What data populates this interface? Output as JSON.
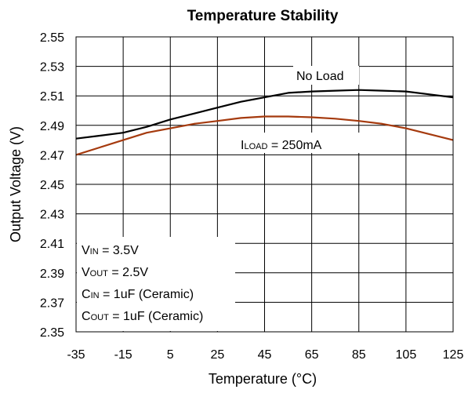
{
  "chart_data": {
    "type": "line",
    "title": "Temperature  Stability",
    "xlabel": "Temperature (°C)",
    "ylabel": "Output Voltage (V)",
    "xlim": [
      -35,
      125
    ],
    "ylim": [
      2.35,
      2.55
    ],
    "grid": true,
    "x_ticks": [
      "-35",
      "-15",
      "5",
      "25",
      "45",
      "65",
      "85",
      "105",
      "125"
    ],
    "y_ticks": [
      "2.55",
      "2.53",
      "2.51",
      "2.49",
      "2.47",
      "2.45",
      "2.43",
      "2.41",
      "2.39",
      "2.37",
      "2.35"
    ],
    "series": [
      {
        "name": "No Load",
        "color": "#000000",
        "x": [
          -35,
          -25,
          -15,
          -5,
          5,
          15,
          25,
          35,
          45,
          55,
          65,
          75,
          85,
          95,
          105,
          115,
          125
        ],
        "y": [
          2.481,
          2.483,
          2.485,
          2.489,
          2.494,
          2.498,
          2.502,
          2.506,
          2.509,
          2.512,
          2.513,
          2.5135,
          2.514,
          2.5135,
          2.513,
          2.511,
          2.509
        ]
      },
      {
        "name": "ILOAD = 250mA",
        "color": "#a53a0e",
        "x": [
          -35,
          -25,
          -15,
          -5,
          5,
          15,
          25,
          35,
          45,
          55,
          65,
          75,
          85,
          95,
          105,
          115,
          125
        ],
        "y": [
          2.47,
          2.475,
          2.48,
          2.485,
          2.488,
          2.491,
          2.493,
          2.495,
          2.496,
          2.496,
          2.4955,
          2.4945,
          2.493,
          2.491,
          2.488,
          2.484,
          2.48
        ]
      }
    ],
    "series_labels": {
      "no_load": "No Load",
      "iload_main": "I",
      "iload_sub": "LOAD",
      "iload_rest": " = 250mA"
    },
    "conditions": [
      {
        "main": "V",
        "sub": "IN",
        "rest": " = 3.5V"
      },
      {
        "main": "V",
        "sub": "OUT",
        "rest": " = 2.5V"
      },
      {
        "main": "C",
        "sub": "IN",
        "rest": " = 1uF (Ceramic)"
      },
      {
        "main": "C",
        "sub": "OUT",
        "rest": " = 1uF (Ceramic)"
      }
    ]
  }
}
